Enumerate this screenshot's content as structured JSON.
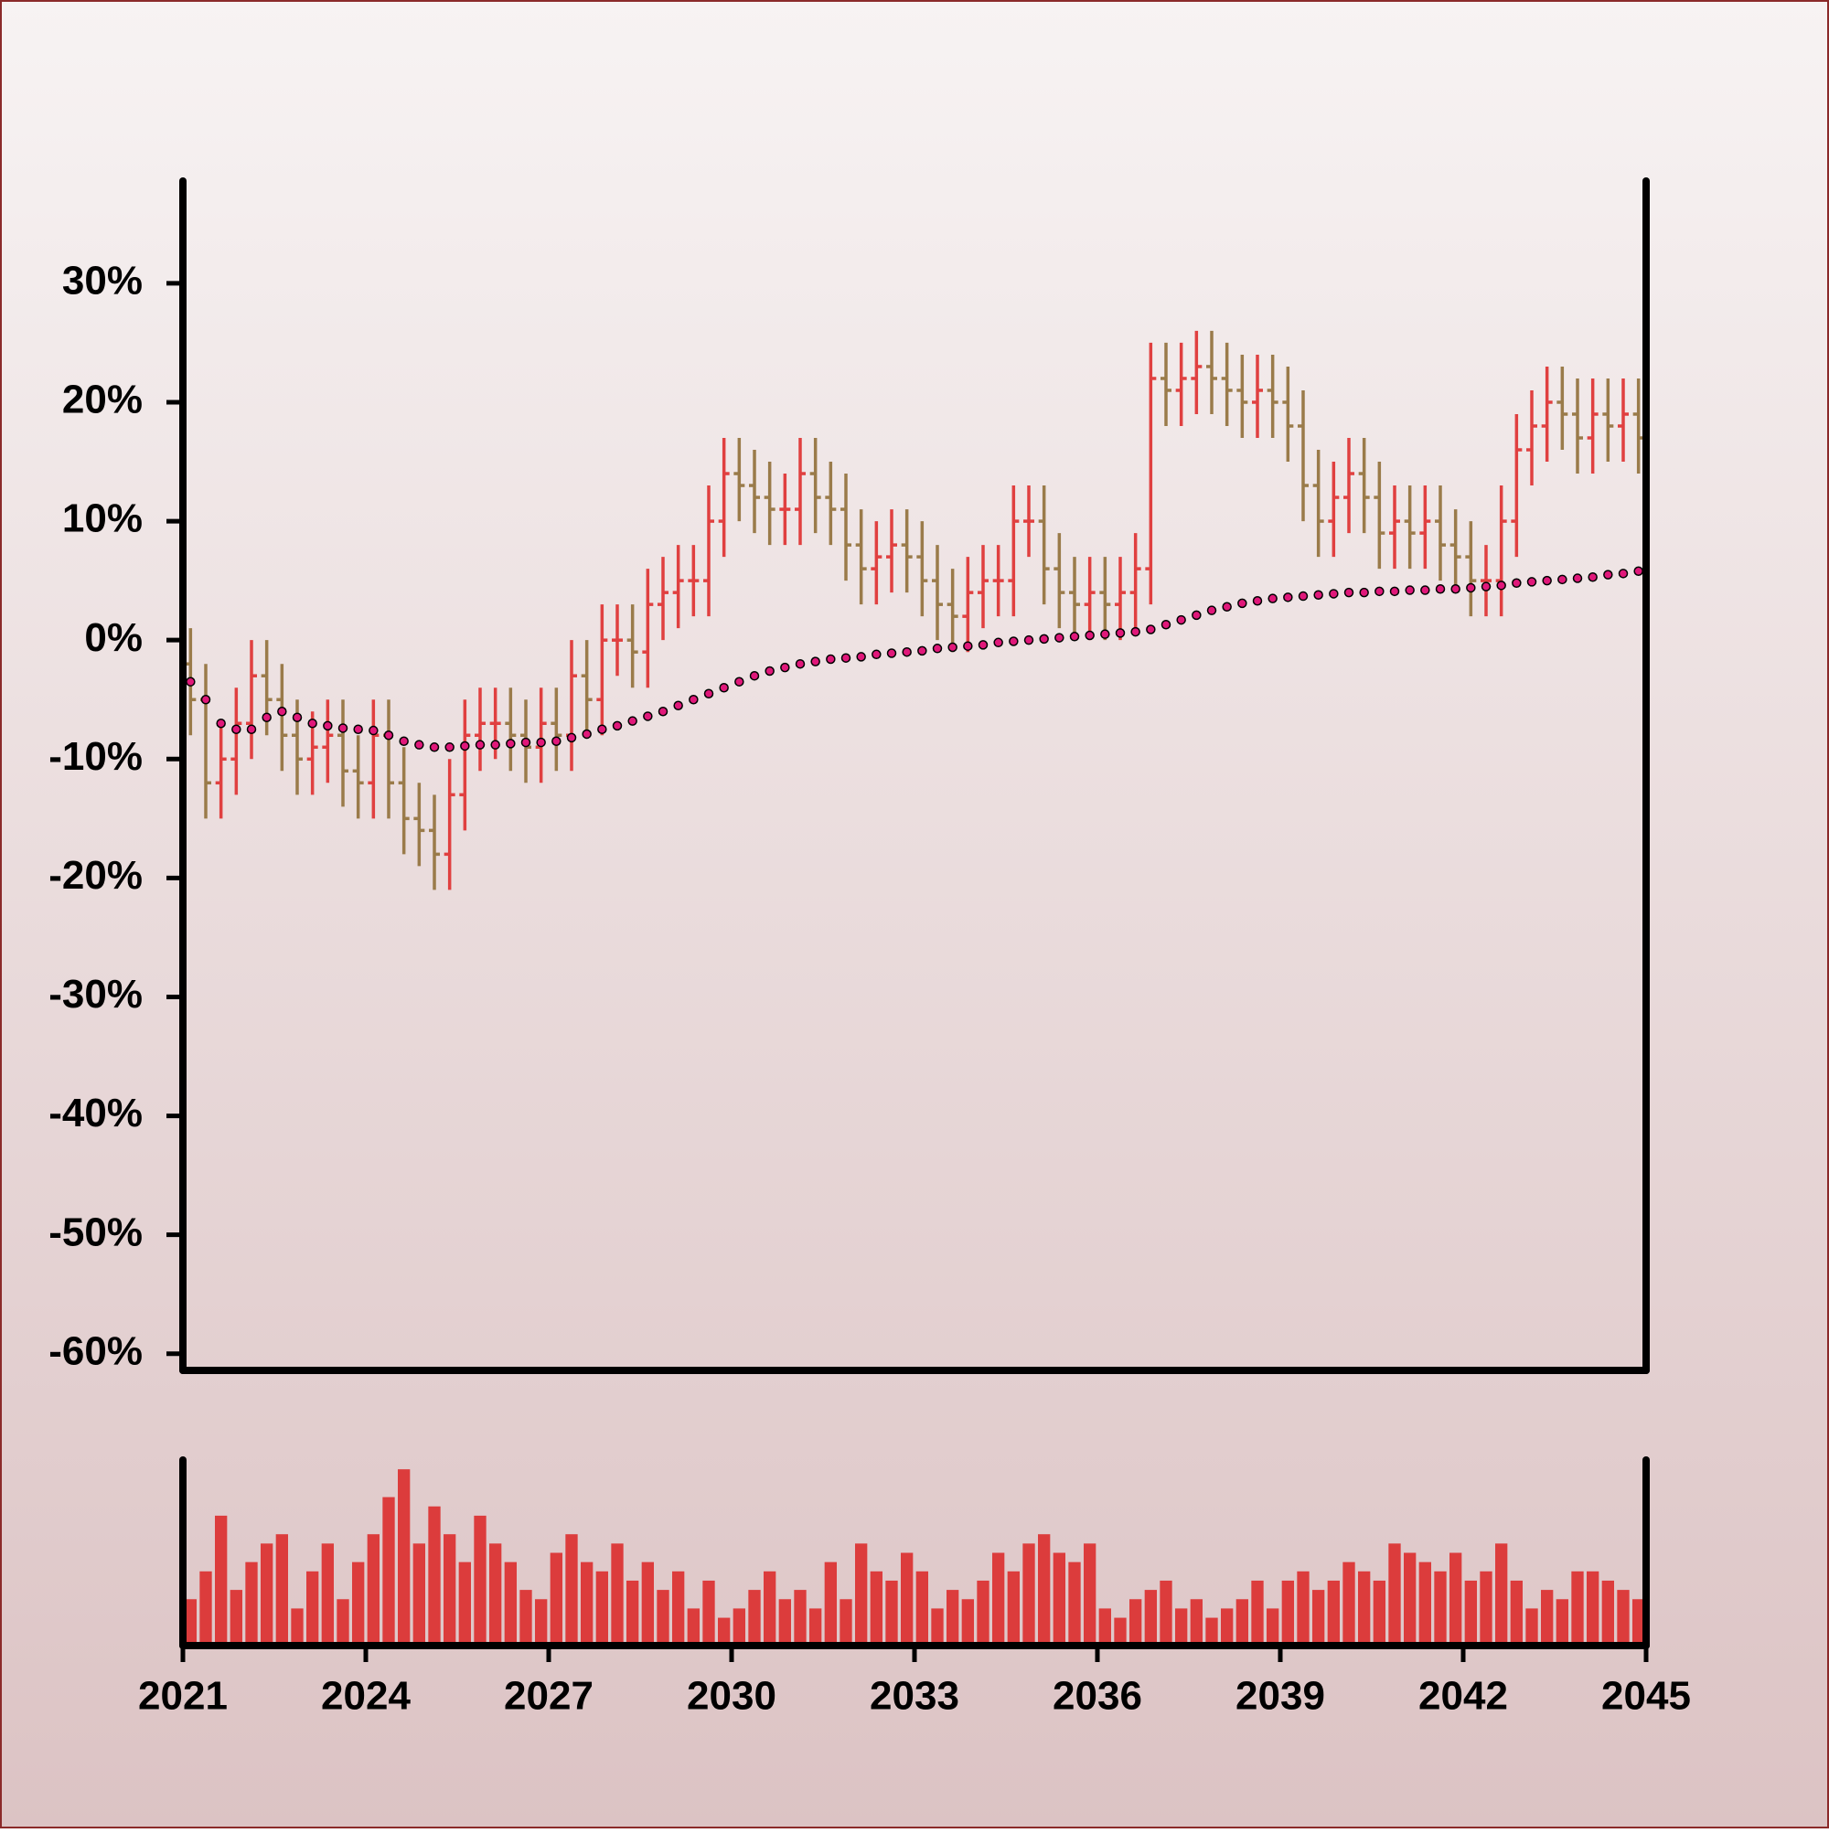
{
  "chart_data": {
    "type": "ohlc",
    "x": [
      2021,
      2021.25,
      2021.5,
      2021.75,
      2022,
      2022.25,
      2022.5,
      2022.75,
      2023,
      2023.25,
      2023.5,
      2023.75,
      2024,
      2024.25,
      2024.5,
      2024.75,
      2025,
      2025.25,
      2025.5,
      2025.75,
      2026,
      2026.25,
      2026.5,
      2026.75,
      2027,
      2027.25,
      2027.5,
      2027.75,
      2028,
      2028.25,
      2028.5,
      2028.75,
      2029,
      2029.25,
      2029.5,
      2029.75,
      2030,
      2030.25,
      2030.5,
      2030.75,
      2031,
      2031.25,
      2031.5,
      2031.75,
      2032,
      2032.25,
      2032.5,
      2032.75,
      2033,
      2033.25,
      2033.5,
      2033.75,
      2034,
      2034.25,
      2034.5,
      2034.75,
      2035,
      2035.25,
      2035.5,
      2035.75,
      2036,
      2036.25,
      2036.5,
      2036.75,
      2037,
      2037.25,
      2037.5,
      2037.75,
      2038,
      2038.25,
      2038.5,
      2038.75,
      2039,
      2039.25,
      2039.5,
      2039.75,
      2040,
      2040.25,
      2040.5,
      2040.75,
      2041,
      2041.25,
      2041.5,
      2041.75,
      2042,
      2042.25,
      2042.5,
      2042.75,
      2043,
      2043.25,
      2043.5,
      2043.75,
      2044,
      2044.25,
      2044.5,
      2044.75
    ],
    "open": [
      -2,
      -5,
      -12,
      -10,
      -7,
      -3,
      -5,
      -8,
      -10,
      -9,
      -8,
      -11,
      -12,
      -8,
      -12,
      -15,
      -16,
      -18,
      -13,
      -8,
      -7,
      -7,
      -8,
      -9,
      -7,
      -8,
      -3,
      -5,
      0,
      0,
      -1,
      3,
      4,
      5,
      5,
      10,
      14,
      13,
      12,
      11,
      11,
      14,
      12,
      11,
      8,
      6,
      7,
      8,
      7,
      5,
      3,
      2,
      4,
      5,
      5,
      10,
      10,
      6,
      4,
      3,
      4,
      3,
      4,
      6,
      22,
      21,
      22,
      23,
      22,
      21,
      20,
      21,
      20,
      18,
      13,
      10,
      12,
      14,
      12,
      9,
      10,
      9,
      10,
      8,
      7,
      5,
      5,
      10,
      16,
      18,
      20,
      19,
      17,
      19,
      18,
      19
    ],
    "high": [
      1,
      -2,
      -7,
      -4,
      0,
      0,
      -2,
      -5,
      -6,
      -5,
      -5,
      -8,
      -5,
      -5,
      -9,
      -12,
      -13,
      -10,
      -5,
      -4,
      -4,
      -4,
      -5,
      -4,
      -4,
      0,
      0,
      3,
      3,
      3,
      6,
      7,
      8,
      8,
      13,
      17,
      17,
      16,
      15,
      14,
      17,
      17,
      15,
      14,
      11,
      10,
      11,
      11,
      10,
      8,
      6,
      7,
      8,
      8,
      13,
      13,
      13,
      9,
      7,
      7,
      7,
      7,
      9,
      25,
      25,
      25,
      26,
      26,
      25,
      24,
      24,
      24,
      23,
      21,
      16,
      15,
      17,
      17,
      15,
      13,
      13,
      13,
      13,
      11,
      10,
      8,
      13,
      19,
      21,
      23,
      23,
      22,
      22,
      22,
      22,
      22
    ],
    "low": [
      -8,
      -15,
      -15,
      -13,
      -10,
      -8,
      -11,
      -13,
      -13,
      -12,
      -14,
      -15,
      -15,
      -15,
      -18,
      -19,
      -21,
      -21,
      -16,
      -11,
      -10,
      -11,
      -12,
      -12,
      -11,
      -11,
      -8,
      -8,
      -3,
      -4,
      -4,
      0,
      1,
      2,
      2,
      7,
      10,
      9,
      8,
      8,
      8,
      9,
      8,
      5,
      3,
      3,
      4,
      4,
      2,
      0,
      -1,
      -1,
      1,
      2,
      2,
      7,
      3,
      1,
      0,
      0,
      0,
      0,
      1,
      3,
      18,
      18,
      19,
      19,
      18,
      17,
      17,
      17,
      15,
      10,
      7,
      7,
      9,
      9,
      6,
      6,
      6,
      6,
      5,
      4,
      2,
      2,
      2,
      7,
      13,
      15,
      16,
      14,
      14,
      15,
      15,
      14
    ],
    "close": [
      -5,
      -12,
      -10,
      -7,
      -3,
      -5,
      -8,
      -10,
      -9,
      -8,
      -11,
      -12,
      -8,
      -12,
      -15,
      -16,
      -18,
      -13,
      -8,
      -7,
      -7,
      -8,
      -9,
      -7,
      -8,
      -3,
      -5,
      0,
      0,
      -1,
      3,
      4,
      5,
      5,
      10,
      14,
      13,
      12,
      11,
      11,
      14,
      12,
      11,
      8,
      6,
      7,
      8,
      7,
      5,
      3,
      2,
      4,
      5,
      5,
      10,
      10,
      6,
      4,
      3,
      4,
      3,
      4,
      6,
      22,
      21,
      22,
      23,
      22,
      21,
      20,
      21,
      20,
      18,
      13,
      10,
      12,
      14,
      12,
      9,
      10,
      9,
      10,
      8,
      7,
      5,
      5,
      10,
      16,
      18,
      20,
      19,
      17,
      19,
      18,
      19,
      17
    ],
    "moving_average": {
      "color": "#e0187a",
      "values": [
        -3.5,
        -5,
        -7,
        -7.5,
        -7.5,
        -6.5,
        -6,
        -6.5,
        -7,
        -7.2,
        -7.4,
        -7.5,
        -7.6,
        -8,
        -8.5,
        -8.8,
        -9,
        -9,
        -8.9,
        -8.8,
        -8.8,
        -8.7,
        -8.6,
        -8.6,
        -8.5,
        -8.2,
        -7.9,
        -7.5,
        -7.2,
        -6.8,
        -6.4,
        -6,
        -5.5,
        -5,
        -4.5,
        -4,
        -3.5,
        -3,
        -2.6,
        -2.3,
        -2,
        -1.8,
        -1.6,
        -1.5,
        -1.4,
        -1.2,
        -1.1,
        -1,
        -0.9,
        -0.7,
        -0.6,
        -0.5,
        -0.4,
        -0.2,
        -0.1,
        0,
        0.1,
        0.2,
        0.3,
        0.4,
        0.5,
        0.6,
        0.7,
        0.9,
        1.3,
        1.7,
        2.1,
        2.5,
        2.8,
        3.1,
        3.3,
        3.5,
        3.6,
        3.7,
        3.8,
        3.9,
        4,
        4,
        4.1,
        4.1,
        4.2,
        4.2,
        4.3,
        4.3,
        4.4,
        4.5,
        4.6,
        4.8,
        4.9,
        5,
        5.1,
        5.2,
        5.3,
        5.5,
        5.6,
        5.8
      ]
    },
    "volume": [
      25,
      40,
      70,
      30,
      45,
      55,
      60,
      20,
      40,
      55,
      25,
      45,
      60,
      80,
      95,
      55,
      75,
      60,
      45,
      70,
      55,
      45,
      30,
      25,
      50,
      60,
      45,
      40,
      55,
      35,
      45,
      30,
      40,
      20,
      35,
      15,
      20,
      30,
      40,
      25,
      30,
      20,
      45,
      25,
      55,
      40,
      35,
      50,
      40,
      20,
      30,
      25,
      35,
      50,
      40,
      55,
      60,
      50,
      45,
      55,
      20,
      15,
      25,
      30,
      35,
      20,
      25,
      15,
      20,
      25,
      35,
      20,
      35,
      40,
      30,
      35,
      45,
      40,
      35,
      55,
      50,
      45,
      40,
      50,
      35,
      40,
      55,
      35,
      20,
      30,
      25,
      40,
      40,
      35,
      30,
      25
    ],
    "volume_ylim": [
      0,
      100
    ],
    "up_color": "#e04040",
    "down_color": "#9a7b4a",
    "volume_color": "#dc3c3c",
    "xlim": [
      2021,
      2045
    ],
    "xticks": [
      2021,
      2024,
      2027,
      2030,
      2033,
      2036,
      2039,
      2042,
      2045
    ],
    "ylim": [
      -61.4,
      38.6
    ],
    "yticks": [
      {
        "value": 30,
        "label": "30%"
      },
      {
        "value": 20,
        "label": "20%"
      },
      {
        "value": 10,
        "label": "10%"
      },
      {
        "value": 0,
        "label": "0%"
      },
      {
        "value": -10,
        "label": "-10%"
      },
      {
        "value": -20,
        "label": "-20%"
      },
      {
        "value": -30,
        "label": "-30%"
      },
      {
        "value": -40,
        "label": "-40%"
      },
      {
        "value": -50,
        "label": "-50%"
      },
      {
        "value": -60,
        "label": "-60%"
      }
    ]
  }
}
